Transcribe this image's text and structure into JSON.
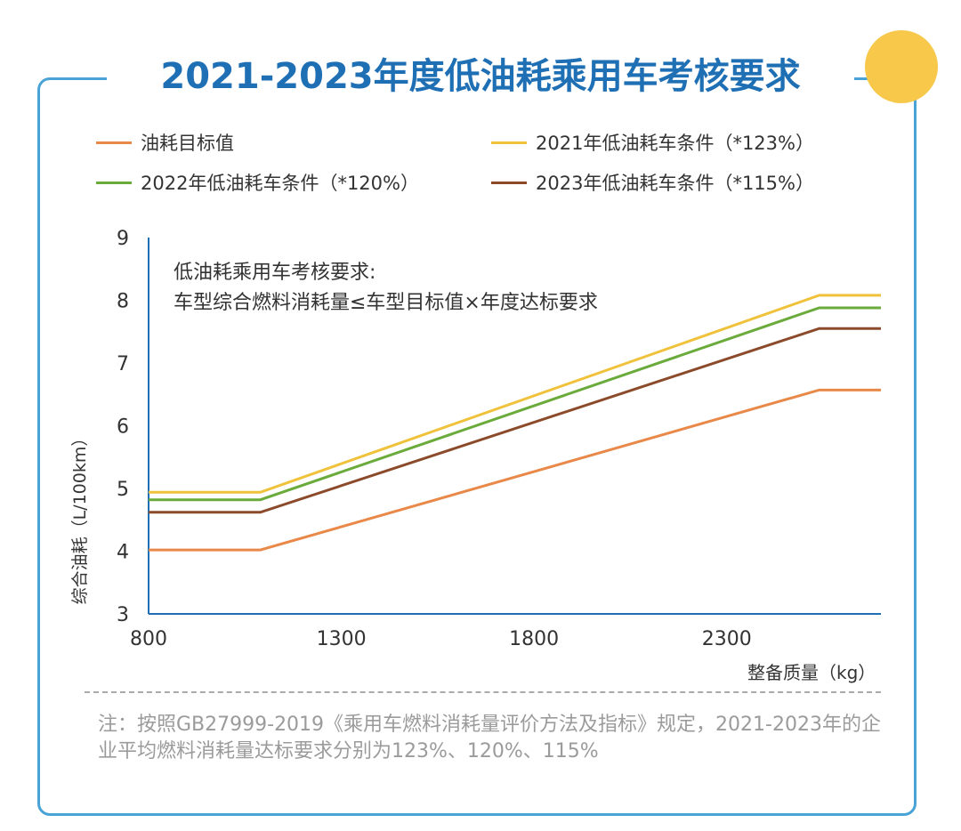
{
  "page": {
    "title": "2021-2023年度低油耗乘用车考核要求",
    "note": "注：按照GB27999-2019《乘用车燃料消耗量评价方法及指标》规定，2021-2023年的企业平均燃料消耗量达标要求分别为123%、120%、115%"
  },
  "chart_data": {
    "type": "line",
    "title": "2021-2023年度低油耗乘用车考核要求",
    "xlabel": "整备质量（kg）",
    "ylabel": "综合油耗（L/100km）",
    "xlim": [
      800,
      2700
    ],
    "ylim": [
      3,
      9
    ],
    "xticks": [
      800,
      1300,
      1800,
      2300
    ],
    "yticks": [
      3,
      4,
      5,
      6,
      7,
      8,
      9
    ],
    "grid": false,
    "legend_position": "top",
    "annotation": {
      "line1": "低油耗乘用车考核要求:",
      "line2": "车型综合燃料消耗量≤车型目标值×年度达标要求"
    },
    "series": [
      {
        "name": "油耗目标值",
        "color": "#e8894a",
        "x": [
          800,
          1090,
          2540,
          2700
        ],
        "y": [
          4.02,
          4.02,
          6.57,
          6.57
        ]
      },
      {
        "name": "2021年低油耗车条件（*123%）",
        "color": "#f0c23b",
        "x": [
          800,
          1090,
          2540,
          2700
        ],
        "y": [
          4.94,
          4.94,
          8.08,
          8.08
        ]
      },
      {
        "name": "2022年低油耗车条件（*120%）",
        "color": "#6aab3c",
        "x": [
          800,
          1090,
          2540,
          2700
        ],
        "y": [
          4.82,
          4.82,
          7.88,
          7.88
        ]
      },
      {
        "name": "2023年低油耗车条件（*115%）",
        "color": "#8b4a2a",
        "x": [
          800,
          1090,
          2540,
          2700
        ],
        "y": [
          4.62,
          4.62,
          7.55,
          7.55
        ]
      }
    ]
  }
}
